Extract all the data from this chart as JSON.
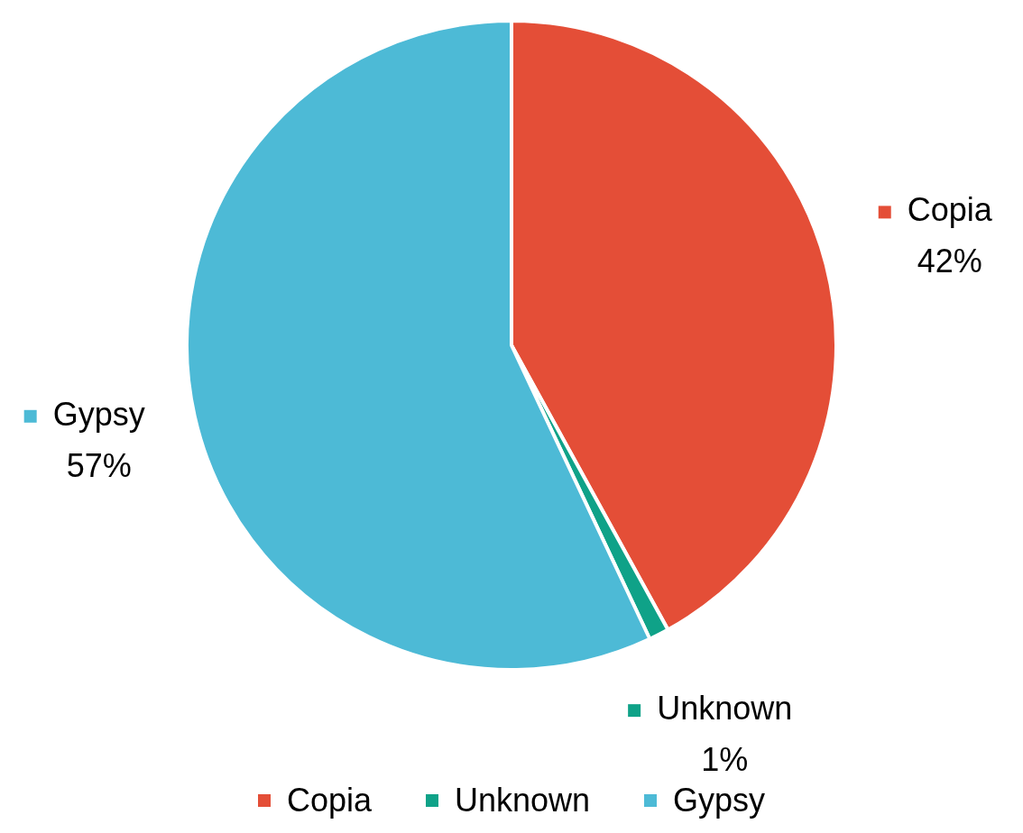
{
  "chart_data": {
    "type": "pie",
    "categories": [
      "Copia",
      "Unknown",
      "Gypsy"
    ],
    "values": [
      42,
      1,
      57
    ],
    "colors": [
      "#e44e37",
      "#0fa288",
      "#4dbad6"
    ],
    "value_labels": [
      "42%",
      "1%",
      "57%"
    ],
    "legend": "bottom"
  }
}
